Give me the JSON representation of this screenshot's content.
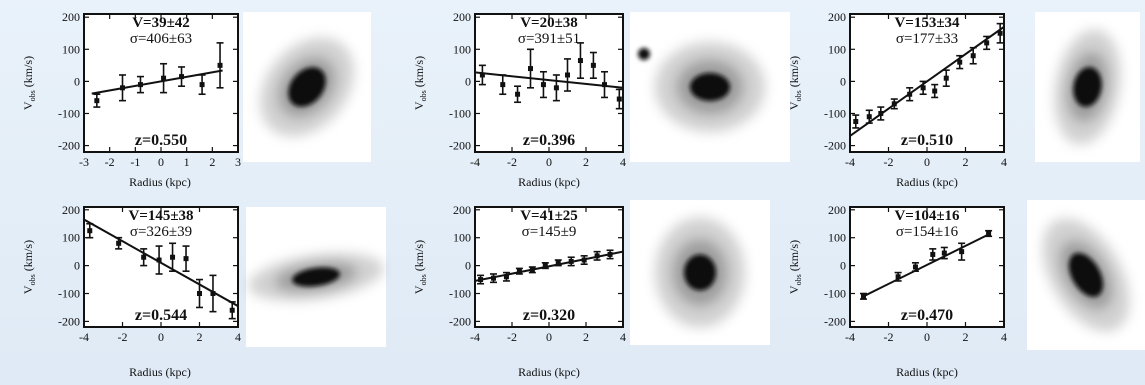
{
  "figure": {
    "panels": [
      {
        "v_label": "V=39±42",
        "sigma_label": "σ=406±63",
        "z_label": "z=0.550",
        "y_axis_label": "V",
        "y_axis_subscript": "obs",
        "y_axis_unit": "(km/s)",
        "x_axis_label": "Radius (kpc)",
        "x_ticks": [
          "-3",
          "-2",
          "-1",
          "0",
          "1",
          "2",
          "3"
        ],
        "y_ticks": [
          "200",
          "100",
          "0",
          "-100",
          "-200"
        ],
        "xlim": [
          -3,
          3
        ],
        "ylim": [
          -220,
          210
        ],
        "fit_line": {
          "x": [
            -2.7,
            2.4
          ],
          "y": [
            -38,
            34
          ]
        },
        "points": [
          {
            "x": -2.5,
            "y": -60,
            "err": 20
          },
          {
            "x": -1.5,
            "y": -20,
            "err": 40
          },
          {
            "x": -0.8,
            "y": -10,
            "err": 25
          },
          {
            "x": 0.1,
            "y": 10,
            "err": 45
          },
          {
            "x": 0.8,
            "y": 15,
            "err": 30
          },
          {
            "x": 1.6,
            "y": -10,
            "err": 30
          },
          {
            "x": 2.3,
            "y": 50,
            "err": 70
          }
        ],
        "galaxy_image": {
          "shape": "elliptical-tilted"
        }
      },
      {
        "v_label": "V=20±38",
        "sigma_label": "σ=391±51",
        "z_label": "z=0.396",
        "y_axis_label": "V",
        "y_axis_subscript": "obs",
        "y_axis_unit": "(km/s)",
        "x_axis_label": "Radius (kpc)",
        "x_ticks": [
          "-4",
          "-2",
          "0",
          "2",
          "4"
        ],
        "y_ticks": [
          "200",
          "100",
          "0",
          "-100",
          "-200"
        ],
        "xlim": [
          -4,
          4
        ],
        "ylim": [
          -220,
          210
        ],
        "fit_line": {
          "x": [
            -4,
            4
          ],
          "y": [
            28,
            -20
          ]
        },
        "points": [
          {
            "x": -3.6,
            "y": 20,
            "err": 30
          },
          {
            "x": -2.5,
            "y": -10,
            "err": 30
          },
          {
            "x": -1.7,
            "y": -40,
            "err": 25
          },
          {
            "x": -1.0,
            "y": 40,
            "err": 60
          },
          {
            "x": -0.3,
            "y": -10,
            "err": 40
          },
          {
            "x": 0.4,
            "y": -20,
            "err": 40
          },
          {
            "x": 1.0,
            "y": 20,
            "err": 50
          },
          {
            "x": 1.7,
            "y": 65,
            "err": 55
          },
          {
            "x": 2.4,
            "y": 50,
            "err": 40
          },
          {
            "x": 3.0,
            "y": -10,
            "err": 40
          },
          {
            "x": 3.8,
            "y": -55,
            "err": 30
          }
        ],
        "galaxy_image": {
          "shape": "elliptical-round-with-companion"
        }
      },
      {
        "v_label": "V=153±34",
        "sigma_label": "σ=177±33",
        "z_label": "z=0.510",
        "y_axis_label": "V",
        "y_axis_subscript": "obs",
        "y_axis_unit": "(km/s)",
        "x_axis_label": "Radius (kpc)",
        "x_ticks": [
          "-4",
          "-2",
          "0",
          "2",
          "4"
        ],
        "y_ticks": [
          "200",
          "100",
          "0",
          "-100",
          "-200"
        ],
        "xlim": [
          -4,
          4
        ],
        "ylim": [
          -220,
          210
        ],
        "fit_line": {
          "x": [
            -4,
            4
          ],
          "y": [
            -170,
            170
          ]
        },
        "points": [
          {
            "x": -3.7,
            "y": -125,
            "err": 20
          },
          {
            "x": -3.0,
            "y": -110,
            "err": 20
          },
          {
            "x": -2.4,
            "y": -100,
            "err": 20
          },
          {
            "x": -1.7,
            "y": -70,
            "err": 15
          },
          {
            "x": -0.9,
            "y": -40,
            "err": 20
          },
          {
            "x": -0.2,
            "y": -20,
            "err": 20
          },
          {
            "x": 0.4,
            "y": -30,
            "err": 20
          },
          {
            "x": 1.0,
            "y": 10,
            "err": 25
          },
          {
            "x": 1.7,
            "y": 60,
            "err": 20
          },
          {
            "x": 2.4,
            "y": 80,
            "err": 25
          },
          {
            "x": 3.1,
            "y": 120,
            "err": 20
          },
          {
            "x": 3.8,
            "y": 150,
            "err": 30
          }
        ],
        "galaxy_image": {
          "shape": "elliptical-vertical"
        }
      },
      {
        "v_label": "V=145±38",
        "sigma_label": "σ=326±39",
        "z_label": "z=0.544",
        "y_axis_label": "V",
        "y_axis_subscript": "obs",
        "y_axis_unit": "(km/s)",
        "x_axis_label": "Radius (kpc)",
        "x_ticks": [
          "-4",
          "-2",
          "0",
          "2",
          "4"
        ],
        "y_ticks": [
          "200",
          "100",
          "0",
          "-100",
          "-200"
        ],
        "xlim": [
          -4,
          4
        ],
        "ylim": [
          -220,
          210
        ],
        "fit_line": {
          "x": [
            -4,
            4
          ],
          "y": [
            165,
            -145
          ]
        },
        "points": [
          {
            "x": -3.7,
            "y": 125,
            "err": 25
          },
          {
            "x": -2.2,
            "y": 80,
            "err": 20
          },
          {
            "x": -0.9,
            "y": 30,
            "err": 30
          },
          {
            "x": -0.1,
            "y": 20,
            "err": 50
          },
          {
            "x": 0.6,
            "y": 30,
            "err": 50
          },
          {
            "x": 1.3,
            "y": 25,
            "err": 45
          },
          {
            "x": 2.0,
            "y": -100,
            "err": 50
          },
          {
            "x": 2.7,
            "y": -100,
            "err": 65
          },
          {
            "x": 3.7,
            "y": -160,
            "err": 30
          }
        ],
        "galaxy_image": {
          "shape": "edge-on-disk"
        }
      },
      {
        "v_label": "V=41±25",
        "sigma_label": "σ=145±9",
        "z_label": "z=0.320",
        "y_axis_label": "V",
        "y_axis_subscript": "obs",
        "y_axis_unit": "(km/s)",
        "x_axis_label": "Radius (kpc)",
        "x_ticks": [
          "-4",
          "-2",
          "0",
          "2",
          "4"
        ],
        "y_ticks": [
          "200",
          "100",
          "0",
          "-100",
          "-200"
        ],
        "xlim": [
          -4,
          4
        ],
        "ylim": [
          -220,
          210
        ],
        "fit_line": {
          "x": [
            -4,
            4
          ],
          "y": [
            -55,
            50
          ]
        },
        "points": [
          {
            "x": -3.7,
            "y": -50,
            "err": 15
          },
          {
            "x": -3.0,
            "y": -45,
            "err": 15
          },
          {
            "x": -2.3,
            "y": -40,
            "err": 15
          },
          {
            "x": -1.6,
            "y": -20,
            "err": 10
          },
          {
            "x": -0.9,
            "y": -15,
            "err": 10
          },
          {
            "x": -0.2,
            "y": 0,
            "err": 10
          },
          {
            "x": 0.5,
            "y": 10,
            "err": 10
          },
          {
            "x": 1.2,
            "y": 15,
            "err": 15
          },
          {
            "x": 1.9,
            "y": 20,
            "err": 15
          },
          {
            "x": 2.6,
            "y": 35,
            "err": 15
          },
          {
            "x": 3.3,
            "y": 40,
            "err": 15
          }
        ],
        "galaxy_image": {
          "shape": "round-compact"
        }
      },
      {
        "v_label": "V=104±16",
        "sigma_label": "σ=154±16",
        "z_label": "z=0.470",
        "y_axis_label": "V",
        "y_axis_subscript": "obs",
        "y_axis_unit": "(km/s)",
        "x_axis_label": "Radius (kpc)",
        "x_ticks": [
          "-4",
          "-2",
          "0",
          "2",
          "4"
        ],
        "y_ticks": [
          "200",
          "100",
          "0",
          "-100",
          "-200"
        ],
        "xlim": [
          -4,
          4
        ],
        "ylim": [
          -220,
          210
        ],
        "fit_line": {
          "x": [
            -3.3,
            3.3
          ],
          "y": [
            -110,
            115
          ]
        },
        "points": [
          {
            "x": -3.3,
            "y": -110,
            "err": 10
          },
          {
            "x": -1.5,
            "y": -40,
            "err": 15
          },
          {
            "x": -0.6,
            "y": -5,
            "err": 15
          },
          {
            "x": 0.3,
            "y": 40,
            "err": 20
          },
          {
            "x": 0.9,
            "y": 45,
            "err": 20
          },
          {
            "x": 1.8,
            "y": 50,
            "err": 30
          },
          {
            "x": 3.2,
            "y": 115,
            "err": 10
          }
        ],
        "galaxy_image": {
          "shape": "elliptical-tilted-diffuse"
        }
      }
    ]
  },
  "chart_data": [
    {
      "type": "scatter",
      "title": "",
      "xlabel": "Radius (kpc)",
      "ylabel": "Vobs (km/s)",
      "xlim": [
        -3,
        3
      ],
      "ylim": [
        -200,
        200
      ],
      "annotations": [
        "V=39±42",
        "σ=406±63",
        "z=0.550"
      ],
      "series": [
        {
          "x": [
            -2.5,
            -1.5,
            -0.8,
            0.1,
            0.8,
            1.6,
            2.3
          ],
          "y": [
            -60,
            -20,
            -10,
            10,
            15,
            -10,
            50
          ],
          "yerr": [
            20,
            40,
            25,
            45,
            30,
            30,
            70
          ]
        }
      ],
      "fit_line": {
        "x": [
          -2.7,
          2.4
        ],
        "y": [
          -38,
          34
        ]
      }
    },
    {
      "type": "scatter",
      "title": "",
      "xlabel": "Radius (kpc)",
      "ylabel": "Vobs (km/s)",
      "xlim": [
        -4,
        4
      ],
      "ylim": [
        -200,
        200
      ],
      "annotations": [
        "V=20±38",
        "σ=391±51",
        "z=0.396"
      ],
      "series": [
        {
          "x": [
            -3.6,
            -2.5,
            -1.7,
            -1.0,
            -0.3,
            0.4,
            1.0,
            1.7,
            2.4,
            3.0,
            3.8
          ],
          "y": [
            20,
            -10,
            -40,
            40,
            -10,
            -20,
            20,
            65,
            50,
            -10,
            -55
          ],
          "yerr": [
            30,
            30,
            25,
            60,
            40,
            40,
            50,
            55,
            40,
            40,
            30
          ]
        }
      ],
      "fit_line": {
        "x": [
          -4,
          4
        ],
        "y": [
          28,
          -20
        ]
      }
    },
    {
      "type": "scatter",
      "title": "",
      "xlabel": "Radius (kpc)",
      "ylabel": "Vobs (km/s)",
      "xlim": [
        -4,
        4
      ],
      "ylim": [
        -200,
        200
      ],
      "annotations": [
        "V=153±34",
        "σ=177±33",
        "z=0.510"
      ],
      "series": [
        {
          "x": [
            -3.7,
            -3.0,
            -2.4,
            -1.7,
            -0.9,
            -0.2,
            0.4,
            1.0,
            1.7,
            2.4,
            3.1,
            3.8
          ],
          "y": [
            -125,
            -110,
            -100,
            -70,
            -40,
            -20,
            -30,
            10,
            60,
            80,
            120,
            150
          ],
          "yerr": [
            20,
            20,
            20,
            15,
            20,
            20,
            20,
            25,
            20,
            25,
            20,
            30
          ]
        }
      ],
      "fit_line": {
        "x": [
          -4,
          4
        ],
        "y": [
          -170,
          170
        ]
      }
    },
    {
      "type": "scatter",
      "title": "",
      "xlabel": "Radius (kpc)",
      "ylabel": "Vobs (km/s)",
      "xlim": [
        -4,
        4
      ],
      "ylim": [
        -200,
        200
      ],
      "annotations": [
        "V=145±38",
        "σ=326±39",
        "z=0.544"
      ],
      "series": [
        {
          "x": [
            -3.7,
            -2.2,
            -0.9,
            -0.1,
            0.6,
            1.3,
            2.0,
            2.7,
            3.7
          ],
          "y": [
            125,
            80,
            30,
            20,
            30,
            25,
            -100,
            -100,
            -160
          ],
          "yerr": [
            25,
            20,
            30,
            50,
            50,
            45,
            50,
            65,
            30
          ]
        }
      ],
      "fit_line": {
        "x": [
          -4,
          4
        ],
        "y": [
          165,
          -145
        ]
      }
    },
    {
      "type": "scatter",
      "title": "",
      "xlabel": "Radius (kpc)",
      "ylabel": "Vobs (km/s)",
      "xlim": [
        -4,
        4
      ],
      "ylim": [
        -200,
        200
      ],
      "annotations": [
        "V=41±25",
        "σ=145±9",
        "z=0.320"
      ],
      "series": [
        {
          "x": [
            -3.7,
            -3.0,
            -2.3,
            -1.6,
            -0.9,
            -0.2,
            0.5,
            1.2,
            1.9,
            2.6,
            3.3
          ],
          "y": [
            -50,
            -45,
            -40,
            -20,
            -15,
            0,
            10,
            15,
            20,
            35,
            40
          ],
          "yerr": [
            15,
            15,
            15,
            10,
            10,
            10,
            10,
            15,
            15,
            15,
            15
          ]
        }
      ],
      "fit_line": {
        "x": [
          -4,
          4
        ],
        "y": [
          -55,
          50
        ]
      }
    },
    {
      "type": "scatter",
      "title": "",
      "xlabel": "Radius (kpc)",
      "ylabel": "Vobs (km/s)",
      "xlim": [
        -4,
        4
      ],
      "ylim": [
        -200,
        200
      ],
      "annotations": [
        "V=104±16",
        "σ=154±16",
        "z=0.470"
      ],
      "series": [
        {
          "x": [
            -3.3,
            -1.5,
            -0.6,
            0.3,
            0.9,
            1.8,
            3.2
          ],
          "y": [
            -110,
            -40,
            -5,
            40,
            45,
            50,
            115
          ],
          "yerr": [
            10,
            15,
            15,
            20,
            20,
            30,
            10
          ]
        }
      ],
      "fit_line": {
        "x": [
          -3.3,
          3.3
        ],
        "y": [
          -110,
          115
        ]
      }
    }
  ]
}
